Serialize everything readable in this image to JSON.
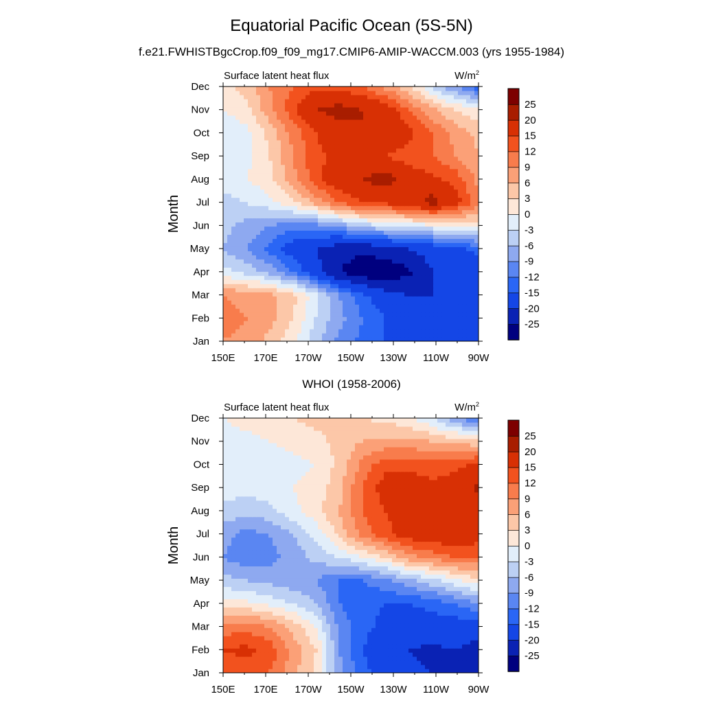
{
  "figure": {
    "title": "Equatorial Pacific Ocean (5S-5N)",
    "subtitle": "f.e21.FWHISTBgcCrop.f09_f09_mg17.CMIP6-AMIP-WACCM.003 (yrs 1955-1984)",
    "second_title": "WHOI (1958-2006)",
    "panel_left_label": "Surface latent heat flux",
    "panel_units_base": "W/m",
    "panel_units_sup": "2",
    "ylabel": "Month"
  },
  "colors": {
    "levels": [
      "#00007f",
      "#0a22b4",
      "#1446e6",
      "#2a66f5",
      "#5a86f2",
      "#8ea9f0",
      "#bcd0f4",
      "#e2eefa",
      "#fde7d8",
      "#fcc7a8",
      "#fba077",
      "#f87c4c",
      "#f2521e",
      "#d83004",
      "#a81d00",
      "#7d0000"
    ],
    "cbar_labels": [
      "-25",
      "-20",
      "-15",
      "-12",
      "-9",
      "-6",
      "-3",
      "0",
      "3",
      "6",
      "9",
      "12",
      "15",
      "20",
      "25"
    ]
  },
  "chart_data": [
    {
      "type": "heatmap",
      "name": "f.e21.FWHISTBgcCrop.f09_f09_mg17.CMIP6-AMIP-WACCM.003 (yrs 1955-1984)",
      "title": "Surface latent heat flux",
      "units": "W/m2",
      "ylabel": "Month",
      "x_ticks": [
        "150E",
        "170E",
        "170W",
        "150W",
        "130W",
        "110W",
        "90W"
      ],
      "y_ticks": [
        "Jan",
        "Feb",
        "Mar",
        "Apr",
        "May",
        "Jun",
        "Jul",
        "Aug",
        "Sep",
        "Oct",
        "Nov",
        "Dec"
      ],
      "contour_levels": [
        -25,
        -20,
        -15,
        -12,
        -9,
        -6,
        -3,
        0,
        3,
        6,
        9,
        12,
        15,
        20,
        25
      ],
      "z": [
        [
          9,
          8,
          5,
          1,
          -5,
          -10,
          -13,
          -15,
          -17,
          -18,
          -18,
          -19
        ],
        [
          10,
          9,
          7,
          3,
          -3,
          -8,
          -12,
          -15,
          -16,
          -17,
          -18,
          -19
        ],
        [
          9,
          8,
          7,
          4,
          -2,
          -9,
          -14,
          -18,
          -20,
          -20,
          -19,
          -19
        ],
        [
          -2,
          -4,
          -7,
          -12,
          -18,
          -25,
          -28,
          -29,
          -26,
          -20,
          -18,
          -17
        ],
        [
          -6,
          -9,
          -13,
          -17,
          -20,
          -23,
          -24,
          -22,
          -20,
          -18,
          -16,
          -14
        ],
        [
          -5,
          -7,
          -9,
          -11,
          -10,
          -8,
          -5,
          -3,
          -2,
          -1,
          0,
          1
        ],
        [
          -4,
          -3,
          -1,
          2,
          7,
          12,
          15,
          16,
          18,
          22,
          17,
          10
        ],
        [
          -2,
          0,
          2,
          8,
          14,
          18,
          20,
          22,
          18,
          16,
          14,
          8
        ],
        [
          -3,
          -1,
          3,
          9,
          14,
          16,
          17,
          15,
          13,
          12,
          9,
          6
        ],
        [
          -3,
          -1,
          4,
          10,
          15,
          18,
          20,
          20,
          16,
          12,
          8,
          5
        ],
        [
          0,
          2,
          8,
          14,
          20,
          22,
          20,
          18,
          12,
          7,
          3,
          1
        ],
        [
          2,
          4,
          9,
          12,
          14,
          14,
          12,
          8,
          4,
          -4,
          -9,
          -14
        ]
      ]
    },
    {
      "type": "heatmap",
      "name": "WHOI (1958-2006)",
      "title": "Surface latent heat flux",
      "units": "W/m2",
      "ylabel": "Month",
      "x_ticks": [
        "150E",
        "170E",
        "170W",
        "150W",
        "130W",
        "110W",
        "90W"
      ],
      "y_ticks": [
        "Jan",
        "Feb",
        "Mar",
        "Apr",
        "May",
        "Jun",
        "Jul",
        "Aug",
        "Sep",
        "Oct",
        "Nov",
        "Dec"
      ],
      "contour_levels": [
        -25,
        -20,
        -15,
        -12,
        -9,
        -6,
        -3,
        0,
        3,
        6,
        9,
        12,
        15,
        20,
        25
      ],
      "z": [
        [
          12,
          13,
          12,
          7,
          2,
          -8,
          -14,
          -17,
          -19,
          -20,
          -20,
          -24
        ],
        [
          15,
          16,
          14,
          8,
          3,
          -9,
          -15,
          -18,
          -20,
          -21,
          -20,
          -22
        ],
        [
          10,
          11,
          9,
          5,
          0,
          -10,
          -14,
          -16,
          -17,
          -17,
          -17,
          -18
        ],
        [
          1,
          1,
          -1,
          -3,
          -6,
          -12,
          -14,
          -15,
          -15,
          -14,
          -12,
          -9
        ],
        [
          -5,
          -6,
          -7,
          -8,
          -9,
          -12,
          -12,
          -10,
          -7,
          -4,
          -1,
          2
        ],
        [
          -9,
          -11,
          -10,
          -8,
          -5,
          -3,
          0,
          3,
          8,
          10,
          12,
          12
        ],
        [
          -8,
          -10,
          -9,
          -6,
          -2,
          4,
          10,
          14,
          17,
          18,
          18,
          17
        ],
        [
          -4,
          -5,
          -4,
          -1,
          2,
          6,
          12,
          15,
          17,
          16,
          17,
          18
        ],
        [
          -1,
          -2,
          -1,
          0,
          1,
          5,
          12,
          17,
          18,
          16,
          17,
          21
        ],
        [
          -2,
          -3,
          -2,
          -1,
          0,
          4,
          10,
          14,
          14,
          13,
          14,
          16
        ],
        [
          -1,
          -1,
          0,
          1,
          2,
          4,
          6,
          7,
          7,
          6,
          5,
          4
        ],
        [
          0,
          1,
          2,
          3,
          4,
          4,
          3,
          2,
          1,
          -3,
          -8,
          -14
        ]
      ]
    }
  ]
}
